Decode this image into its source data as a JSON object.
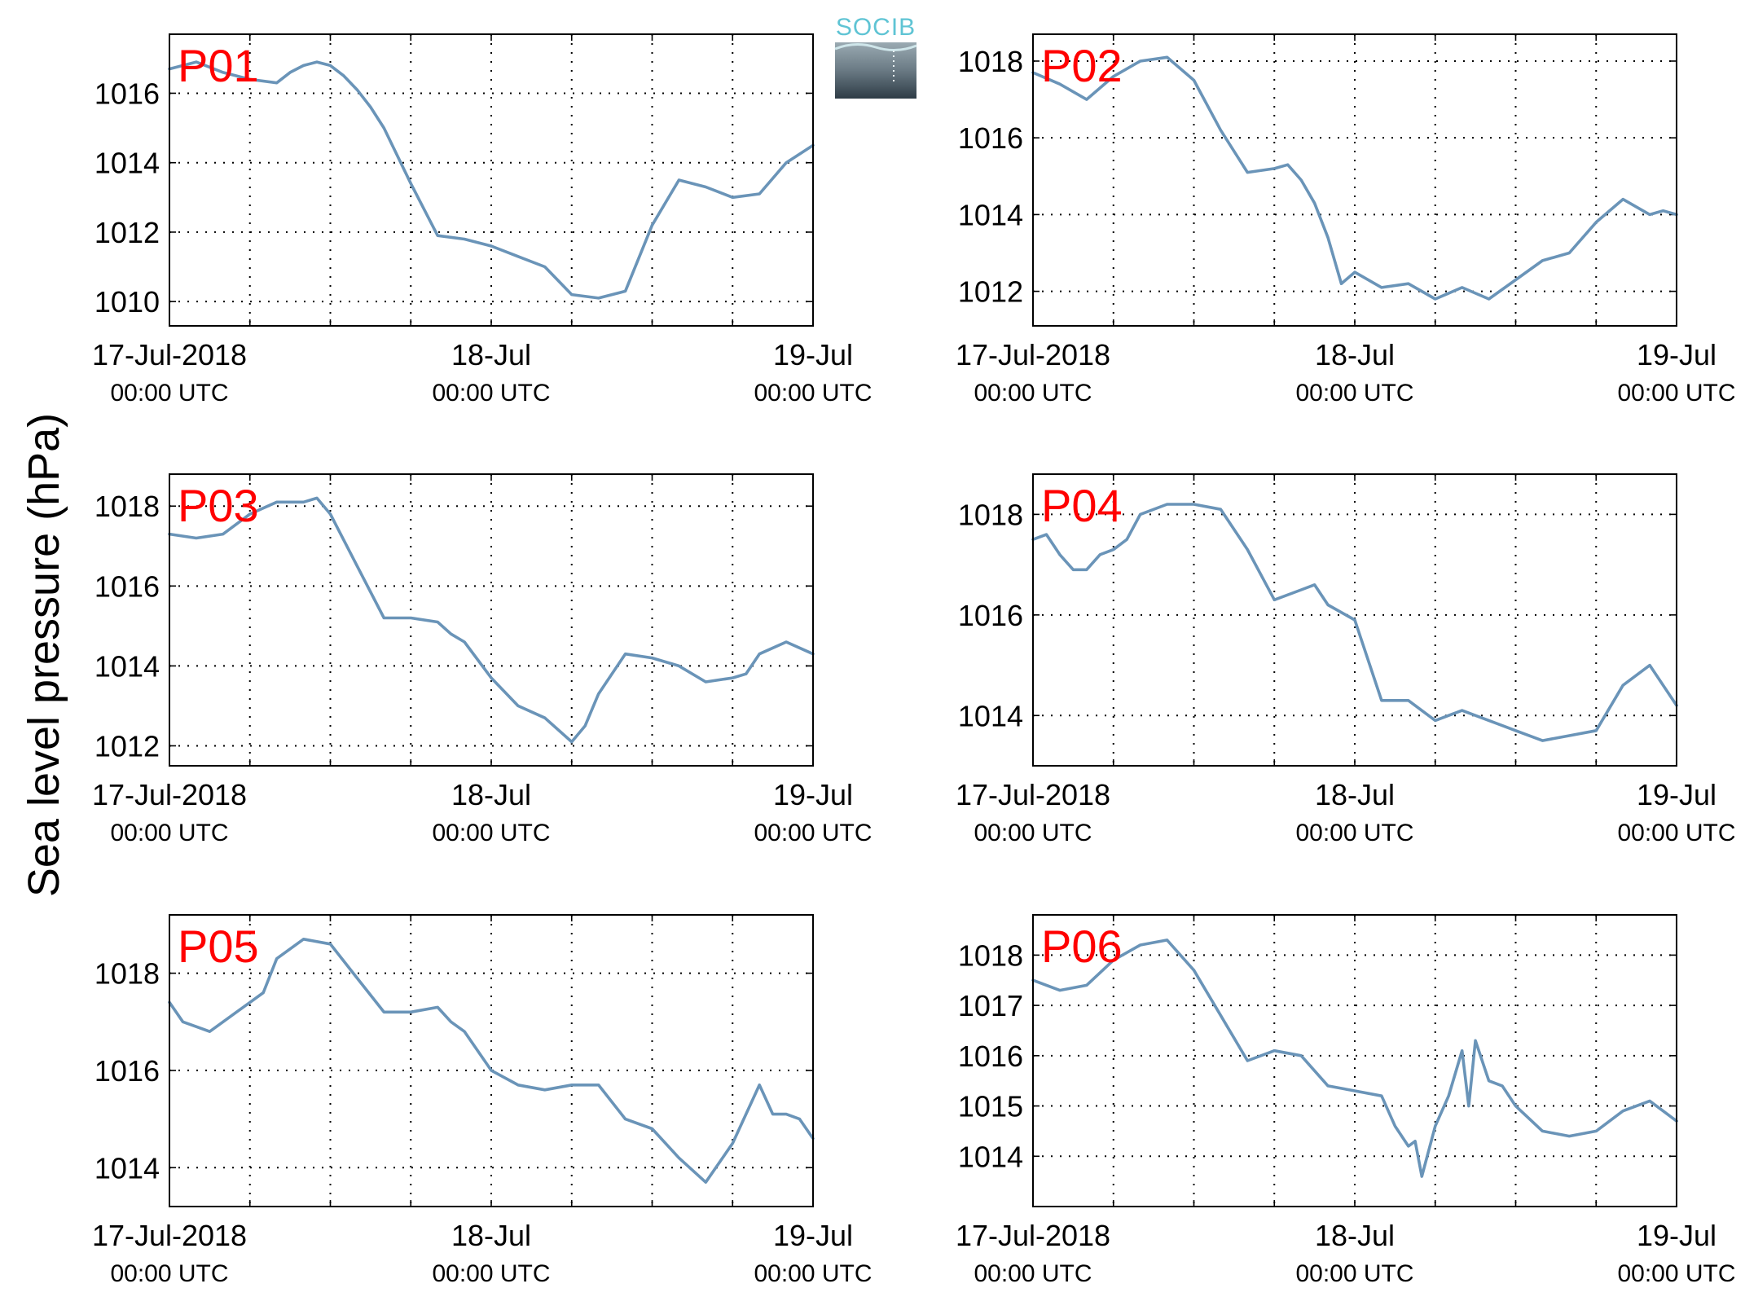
{
  "figure": {
    "ylabel": "Sea level pressure (hPa)",
    "colors": {
      "line": "#6a94b8",
      "panel_label": "#ff0000",
      "logo_text": "#5fc4d4"
    }
  },
  "logo": {
    "text": "SOCIB"
  },
  "xaxis": {
    "ticks": [
      {
        "date": "17-Jul-2018",
        "time": "00:00 UTC"
      },
      {
        "date": "18-Jul",
        "time": "00:00 UTC"
      },
      {
        "date": "19-Jul",
        "time": "00:00 UTC"
      }
    ]
  },
  "chart_data": [
    {
      "type": "line",
      "label": "P01",
      "x_hours": [
        0,
        2,
        4,
        6,
        8,
        9,
        10,
        11,
        12,
        13,
        14,
        15,
        16,
        18,
        20,
        22,
        24,
        26,
        28,
        30,
        32,
        34,
        36,
        38,
        40,
        42,
        44,
        46,
        48
      ],
      "y": [
        1016.7,
        1016.9,
        1016.6,
        1016.4,
        1016.3,
        1016.6,
        1016.8,
        1016.9,
        1016.8,
        1016.5,
        1016.1,
        1015.6,
        1015.0,
        1013.4,
        1011.9,
        1011.8,
        1011.6,
        1011.3,
        1011.0,
        1010.2,
        1010.1,
        1010.3,
        1012.2,
        1013.5,
        1013.3,
        1013.0,
        1013.1,
        1014.0,
        1014.5
      ],
      "yticks": [
        1010,
        1012,
        1014,
        1016
      ],
      "ylim": [
        1009.3,
        1017.7
      ],
      "xlim": [
        0,
        48
      ]
    },
    {
      "type": "line",
      "label": "P02",
      "x_hours": [
        0,
        2,
        4,
        6,
        8,
        10,
        12,
        14,
        16,
        18,
        19,
        20,
        21,
        22,
        23,
        24,
        26,
        28,
        30,
        32,
        34,
        36,
        38,
        40,
        42,
        44,
        46,
        47,
        48
      ],
      "y": [
        1017.7,
        1017.4,
        1017.0,
        1017.6,
        1018.0,
        1018.1,
        1017.5,
        1016.2,
        1015.1,
        1015.2,
        1015.3,
        1014.9,
        1014.3,
        1013.4,
        1012.2,
        1012.5,
        1012.1,
        1012.2,
        1011.8,
        1012.1,
        1011.8,
        1012.3,
        1012.8,
        1013.0,
        1013.8,
        1014.4,
        1014.0,
        1014.1,
        1014.0
      ],
      "yticks": [
        1012,
        1014,
        1016,
        1018
      ],
      "ylim": [
        1011.1,
        1018.7
      ],
      "xlim": [
        0,
        48
      ]
    },
    {
      "type": "line",
      "label": "P03",
      "x_hours": [
        0,
        2,
        4,
        6,
        8,
        10,
        11,
        12,
        14,
        16,
        18,
        20,
        21,
        22,
        24,
        26,
        28,
        30,
        31,
        32,
        34,
        36,
        38,
        40,
        42,
        43,
        44,
        46,
        48
      ],
      "y": [
        1017.3,
        1017.2,
        1017.3,
        1017.8,
        1018.1,
        1018.1,
        1018.2,
        1017.8,
        1016.5,
        1015.2,
        1015.2,
        1015.1,
        1014.8,
        1014.6,
        1013.7,
        1013.0,
        1012.7,
        1012.1,
        1012.5,
        1013.3,
        1014.3,
        1014.2,
        1014.0,
        1013.6,
        1013.7,
        1013.8,
        1014.3,
        1014.6,
        1014.3
      ],
      "yticks": [
        1012,
        1014,
        1016,
        1018
      ],
      "ylim": [
        1011.5,
        1018.8
      ],
      "xlim": [
        0,
        48
      ]
    },
    {
      "type": "line",
      "label": "P04",
      "x_hours": [
        0,
        1,
        2,
        3,
        4,
        5,
        6,
        7,
        8,
        10,
        12,
        14,
        16,
        18,
        20,
        21,
        22,
        24,
        26,
        28,
        30,
        32,
        34,
        36,
        38,
        40,
        42,
        44,
        46,
        48
      ],
      "y": [
        1017.5,
        1017.6,
        1017.2,
        1016.9,
        1016.9,
        1017.2,
        1017.3,
        1017.5,
        1018.0,
        1018.2,
        1018.2,
        1018.1,
        1017.3,
        1016.3,
        1016.5,
        1016.6,
        1016.2,
        1015.9,
        1014.3,
        1014.3,
        1013.9,
        1014.1,
        1013.9,
        1013.7,
        1013.5,
        1013.6,
        1013.7,
        1014.6,
        1015.0,
        1014.2
      ],
      "yticks": [
        1014,
        1016,
        1018
      ],
      "ylim": [
        1013.0,
        1018.8
      ],
      "xlim": [
        0,
        48
      ]
    },
    {
      "type": "line",
      "label": "P05",
      "x_hours": [
        0,
        1,
        2,
        3,
        4,
        5,
        6,
        7,
        8,
        10,
        12,
        14,
        16,
        18,
        20,
        21,
        22,
        24,
        26,
        28,
        30,
        32,
        34,
        36,
        38,
        40,
        42,
        44,
        45,
        46,
        47,
        48
      ],
      "y": [
        1017.4,
        1017.0,
        1016.9,
        1016.8,
        1017.0,
        1017.2,
        1017.4,
        1017.6,
        1018.3,
        1018.7,
        1018.6,
        1017.9,
        1017.2,
        1017.2,
        1017.3,
        1017.0,
        1016.8,
        1016.0,
        1015.7,
        1015.6,
        1015.7,
        1015.7,
        1015.0,
        1014.8,
        1014.2,
        1013.7,
        1014.5,
        1015.7,
        1015.1,
        1015.1,
        1015.0,
        1014.6
      ],
      "yticks": [
        1014,
        1016,
        1018
      ],
      "ylim": [
        1013.2,
        1019.2
      ],
      "xlim": [
        0,
        48
      ]
    },
    {
      "type": "line",
      "label": "P06",
      "x_hours": [
        0,
        2,
        4,
        6,
        8,
        10,
        12,
        14,
        16,
        18,
        20,
        22,
        24,
        26,
        27,
        28,
        28.5,
        29,
        30,
        31,
        32,
        32.5,
        33,
        34,
        35,
        36,
        38,
        40,
        42,
        44,
        46,
        47,
        48
      ],
      "y": [
        1017.5,
        1017.3,
        1017.4,
        1017.9,
        1018.2,
        1018.3,
        1017.7,
        1016.8,
        1015.9,
        1016.1,
        1016.0,
        1015.4,
        1015.3,
        1015.2,
        1014.6,
        1014.2,
        1014.3,
        1013.6,
        1014.6,
        1015.2,
        1016.1,
        1015.0,
        1016.3,
        1015.5,
        1015.4,
        1015.0,
        1014.5,
        1014.4,
        1014.5,
        1014.9,
        1015.1,
        1014.9,
        1014.7
      ],
      "yticks": [
        1014,
        1015,
        1016,
        1017,
        1018
      ],
      "ylim": [
        1013.0,
        1018.8
      ],
      "xlim": [
        0,
        48
      ]
    }
  ]
}
